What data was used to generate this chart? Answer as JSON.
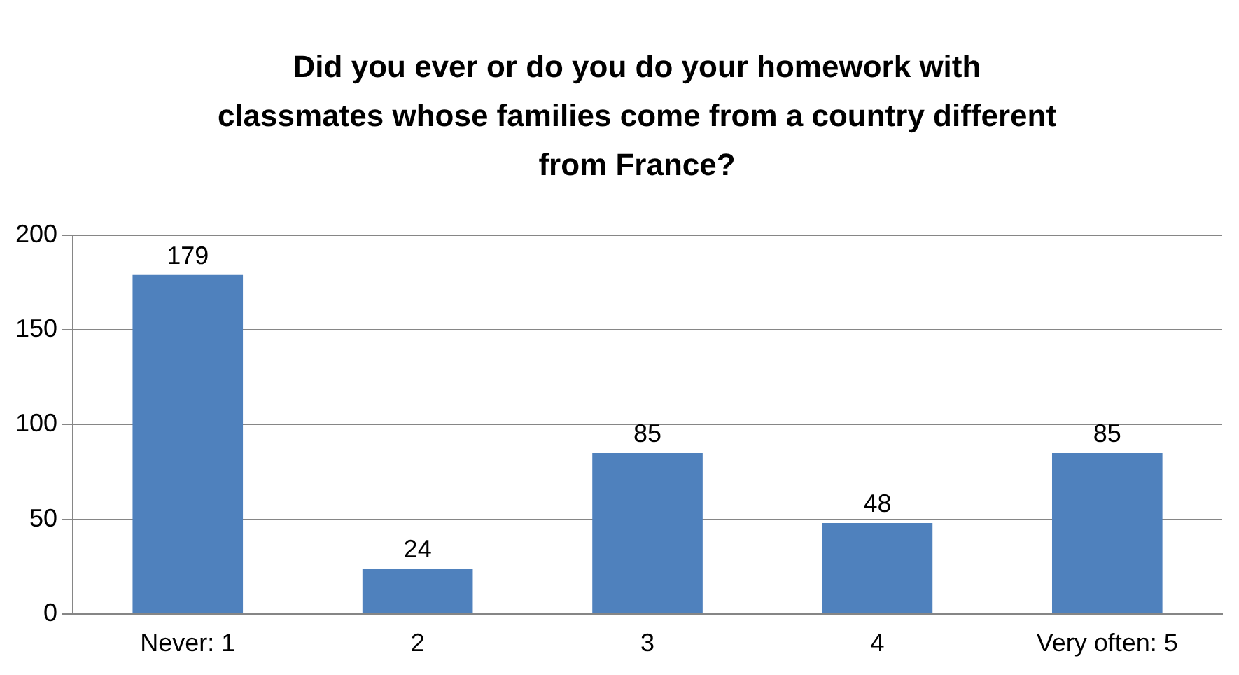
{
  "chart_data": {
    "type": "bar",
    "title": "Did you ever or do you do your homework with classmates whose families come from a country different from France?",
    "categories": [
      "Never: 1",
      "2",
      "3",
      "4",
      "Very often: 5"
    ],
    "values": [
      179,
      24,
      85,
      48,
      85
    ],
    "color": "#4f81bd",
    "ylim": [
      0,
      200
    ],
    "yticks": [
      0,
      50,
      100,
      150,
      200
    ],
    "grid": "y",
    "data_labels": true,
    "legend": false
  }
}
